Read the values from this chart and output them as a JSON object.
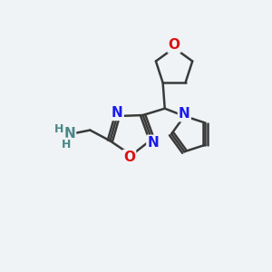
{
  "bg_color": "#f0f3f5",
  "bond_color": "#3a3a3a",
  "N_color": "#1a1aee",
  "O_color": "#dd1111",
  "NH_color": "#4a8888",
  "line_width": 1.8,
  "font_size_atom": 11,
  "font_size_small": 9,
  "fig_w": 3.0,
  "fig_h": 3.0,
  "dpi": 100,
  "xlim": [
    0,
    10
  ],
  "ylim": [
    0,
    10
  ]
}
